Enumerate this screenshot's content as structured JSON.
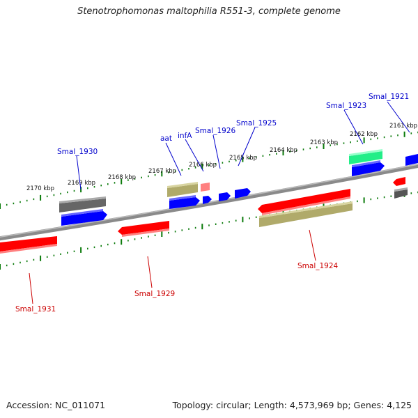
{
  "title": "Stenotrophomonas maltophilia R551-3, complete genome",
  "footer": {
    "accession": "Accession: NC_011071",
    "topology": "Topology: circular; Length: 4,573,969 bp; Genes: 4,125"
  },
  "colors": {
    "forward_label": "#0000cc",
    "reverse_label": "#cc0000",
    "tick": "#0a7a0a",
    "backbone": "#888888"
  },
  "ticks": [
    "2170 kbp",
    "2169 kbp",
    "2168 kbp",
    "2167 kbp",
    "2166 kbp",
    "2165 kbp",
    "2164 kbp",
    "2163 kbp",
    "2162 kbp",
    "2161 kbp"
  ],
  "forward_labels": [
    "Smal_1930",
    "aat",
    "infA",
    "Smal_1926",
    "Smal_1925",
    "Smal_1923",
    "Smal_1921"
  ],
  "reverse_labels": [
    "Smal_1931",
    "Smal_1929",
    "Smal_1924"
  ]
}
